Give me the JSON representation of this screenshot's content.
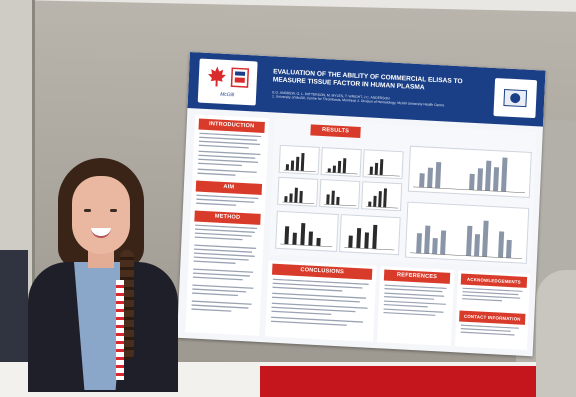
{
  "poster": {
    "title": "EVALUATION OF THE ABILITY OF COMMERCIAL ELISAS TO MEASURE TISSUE FACTOR IN HUMAN PLASMA",
    "authors": "E.G. ANDREW, O. L. PATTERSON, M. MYLES, T. WRIGHT, J.C. ANDERSON",
    "affiliations": "1. University of McGill, Centre for Thrombosis, Montreal; 2. Division of Hematology, McGill University Health Centre",
    "logo_text": "McGill",
    "sections": {
      "introduction": "INTRODUCTION",
      "aim": "AIM",
      "method": "METHOD",
      "results": "RESULTS",
      "conclusions": "CONCLUSIONS",
      "references": "REFERENCES",
      "acknowledgements": "ACKNOWLEDGEMENTS",
      "contact": "CONTACT INFORMATION"
    }
  },
  "colors": {
    "poster_header": "#1b3f86",
    "section_header": "#d93b2b",
    "poster_bg": "#f4f6fa"
  },
  "icons": [
    "maple-leaf-icon",
    "university-logo-icon",
    "header-logo-icon"
  ]
}
